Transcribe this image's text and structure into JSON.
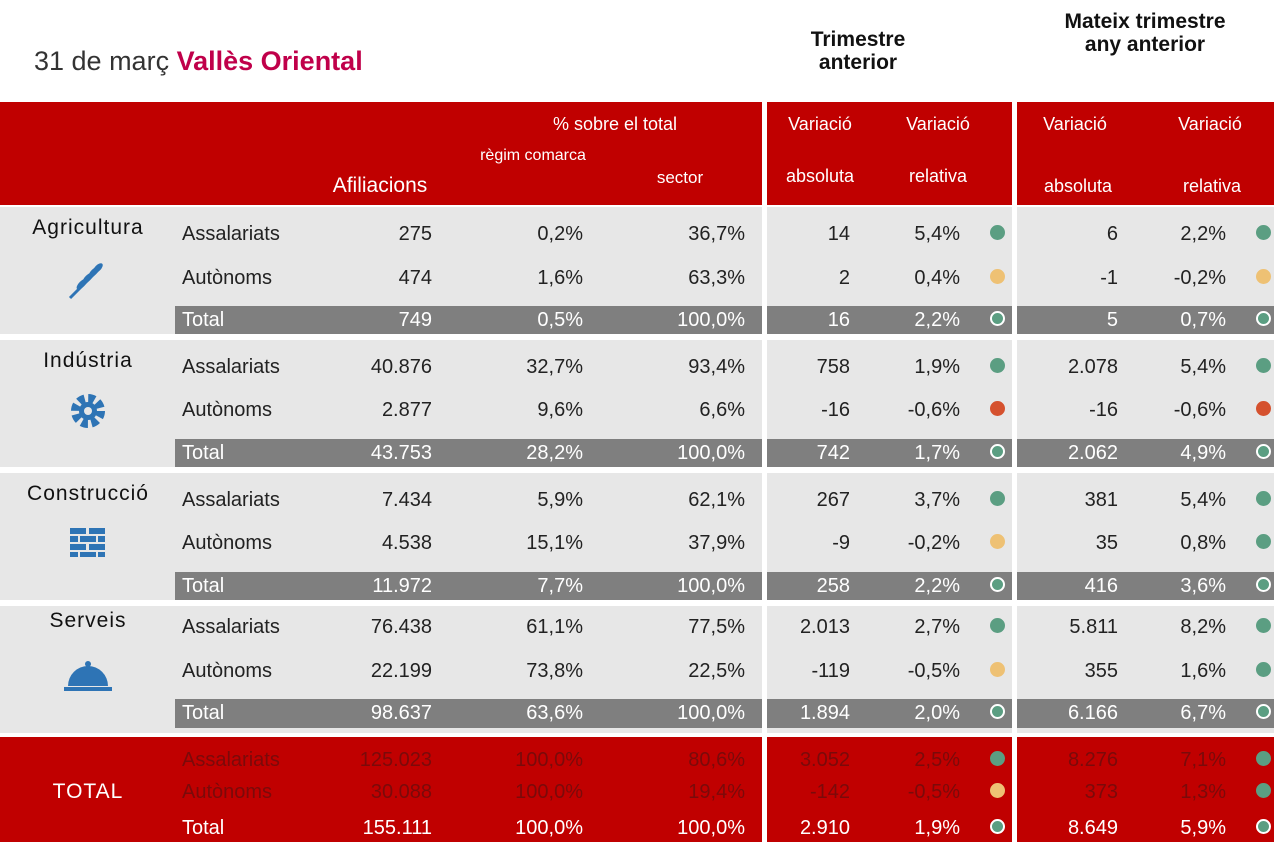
{
  "header": {
    "date": "31 de març",
    "place": "Vallès Oriental",
    "group1": "Trimestre anterior",
    "group2": "Mateix trimestre any anterior",
    "pct": "% sobre el total",
    "regim": "règim comarca",
    "sector": "sector",
    "afiliacions": "Afiliacions",
    "var1": "Variació",
    "var2": "Variació",
    "var3": "Variació",
    "var4": "Variació",
    "abs1": "absoluta",
    "rel1": "relativa",
    "abs2": "absoluta",
    "rel2": "relativa"
  },
  "sectors": [
    {
      "name": "Agricultura",
      "rows": [
        {
          "type": "Assalariats",
          "afiliacions": "275",
          "regim": "0,2%",
          "sector": "36,7%",
          "t_abs": "14",
          "t_rel": "5,4%",
          "t_color": "#5b9e82",
          "a_abs": "6",
          "a_rel": "2,2%",
          "a_color": "#5b9e82"
        },
        {
          "type": "Autònoms",
          "afiliacions": "474",
          "regim": "1,6%",
          "sector": "63,3%",
          "t_abs": "2",
          "t_rel": "0,4%",
          "t_color": "#eec174",
          "a_abs": "-1",
          "a_rel": "-0,2%",
          "a_color": "#eec174"
        },
        {
          "type": "Total",
          "afiliacions": "749",
          "regim": "0,5%",
          "sector": "100,0%",
          "t_abs": "16",
          "t_rel": "2,2%",
          "t_color": "#5b9e82",
          "a_abs": "5",
          "a_rel": "0,7%",
          "a_color": "#5b9e82"
        }
      ]
    },
    {
      "name": "Indústria",
      "rows": [
        {
          "type": "Assalariats",
          "afiliacions": "40.876",
          "regim": "32,7%",
          "sector": "93,4%",
          "t_abs": "758",
          "t_rel": "1,9%",
          "t_color": "#5b9e82",
          "a_abs": "2.078",
          "a_rel": "5,4%",
          "a_color": "#5b9e82"
        },
        {
          "type": "Autònoms",
          "afiliacions": "2.877",
          "regim": "9,6%",
          "sector": "6,6%",
          "t_abs": "-16",
          "t_rel": "-0,6%",
          "t_color": "#d5512e",
          "a_abs": "-16",
          "a_rel": "-0,6%",
          "a_color": "#d5512e"
        },
        {
          "type": "Total",
          "afiliacions": "43.753",
          "regim": "28,2%",
          "sector": "100,0%",
          "t_abs": "742",
          "t_rel": "1,7%",
          "t_color": "#5b9e82",
          "a_abs": "2.062",
          "a_rel": "4,9%",
          "a_color": "#5b9e82"
        }
      ]
    },
    {
      "name": "Construcció",
      "rows": [
        {
          "type": "Assalariats",
          "afiliacions": "7.434",
          "regim": "5,9%",
          "sector": "62,1%",
          "t_abs": "267",
          "t_rel": "3,7%",
          "t_color": "#5b9e82",
          "a_abs": "381",
          "a_rel": "5,4%",
          "a_color": "#5b9e82"
        },
        {
          "type": "Autònoms",
          "afiliacions": "4.538",
          "regim": "15,1%",
          "sector": "37,9%",
          "t_abs": "-9",
          "t_rel": "-0,2%",
          "t_color": "#eec174",
          "a_abs": "35",
          "a_rel": "0,8%",
          "a_color": "#5b9e82"
        },
        {
          "type": "Total",
          "afiliacions": "11.972",
          "regim": "7,7%",
          "sector": "100,0%",
          "t_abs": "258",
          "t_rel": "2,2%",
          "t_color": "#5b9e82",
          "a_abs": "416",
          "a_rel": "3,6%",
          "a_color": "#5b9e82"
        }
      ]
    },
    {
      "name": "Serveis",
      "rows": [
        {
          "type": "Assalariats",
          "afiliacions": "76.438",
          "regim": "61,1%",
          "sector": "77,5%",
          "t_abs": "2.013",
          "t_rel": "2,7%",
          "t_color": "#5b9e82",
          "a_abs": "5.811",
          "a_rel": "8,2%",
          "a_color": "#5b9e82"
        },
        {
          "type": "Autònoms",
          "afiliacions": "22.199",
          "regim": "73,8%",
          "sector": "22,5%",
          "t_abs": "-119",
          "t_rel": "-0,5%",
          "t_color": "#eec174",
          "a_abs": "355",
          "a_rel": "1,6%",
          "a_color": "#5b9e82"
        },
        {
          "type": "Total",
          "afiliacions": "98.637",
          "regim": "63,6%",
          "sector": "100,0%",
          "t_abs": "1.894",
          "t_rel": "2,0%",
          "t_color": "#5b9e82",
          "a_abs": "6.166",
          "a_rel": "6,7%",
          "a_color": "#5b9e82"
        }
      ]
    },
    {
      "name": "TOTAL",
      "rows": [
        {
          "type": "Assalariats",
          "afiliacions": "125.023",
          "regim": "100,0%",
          "sector": "80,6%",
          "t_abs": "3.052",
          "t_rel": "2,5%",
          "t_color": "#5b9e82",
          "a_abs": "8.276",
          "a_rel": "7,1%",
          "a_color": "#5b9e82"
        },
        {
          "type": "Autònoms",
          "afiliacions": "30.088",
          "regim": "100,0%",
          "sector": "19,4%",
          "t_abs": "-142",
          "t_rel": "-0,5%",
          "t_color": "#eec174",
          "a_abs": "373",
          "a_rel": "1,3%",
          "a_color": "#5b9e82"
        },
        {
          "type": "Total",
          "afiliacions": "155.111",
          "regim": "100,0%",
          "sector": "100,0%",
          "t_abs": "2.910",
          "t_rel": "1,9%",
          "t_color": "#5b9e82",
          "a_abs": "8.649",
          "a_rel": "5,9%",
          "a_color": "#5b9e82"
        }
      ]
    }
  ]
}
